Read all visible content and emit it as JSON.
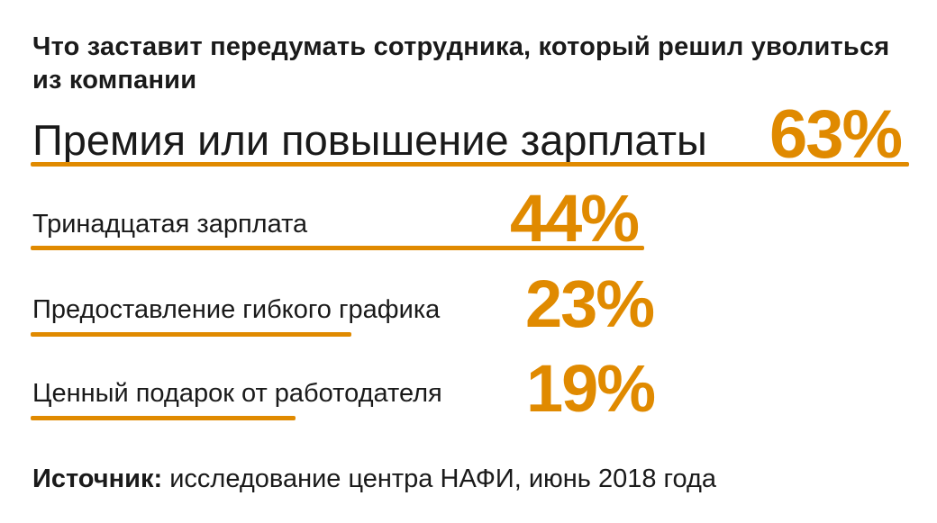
{
  "title": "Что заставит передумать сотрудника, который решил уволиться из компании",
  "source": {
    "label": "Источник:",
    "text": "исследование центра НАФИ, июнь 2018 года"
  },
  "colors": {
    "accent": "#E08A00",
    "text": "#1A1A1A",
    "background": "#FFFFFF"
  },
  "chart_data": {
    "type": "bar",
    "orientation": "horizontal",
    "categories": [
      "Премия или повышение зарплаты",
      "Тринадцатая зарплата",
      "Предоставление гибкого графика",
      "Ценный подарок от работодателя"
    ],
    "values": [
      63,
      44,
      23,
      19
    ],
    "value_labels": [
      "63%",
      "44%",
      "23%",
      "19%"
    ],
    "unit": "%",
    "xlim": [
      0,
      63
    ],
    "grid": false,
    "title": "Что заставит передумать сотрудника, который решил уволиться из компании"
  }
}
